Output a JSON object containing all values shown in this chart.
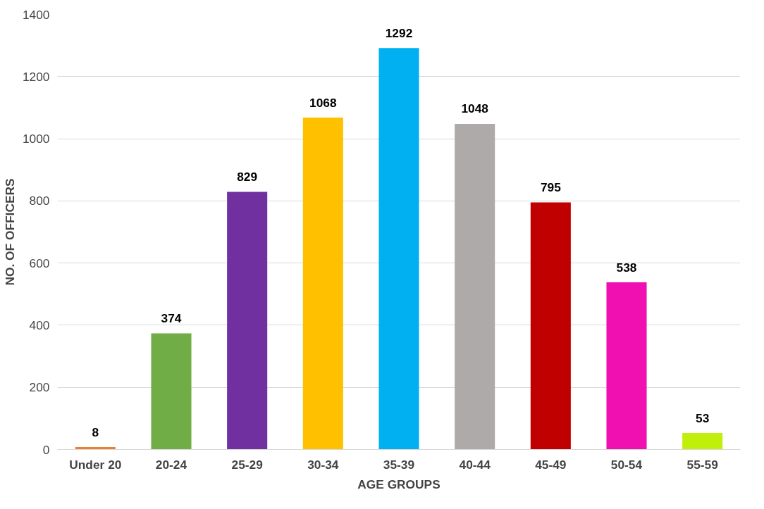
{
  "chart_data": {
    "type": "bar",
    "xlabel": "AGE GROUPS",
    "ylabel": "NO. OF OFFICERS",
    "categories": [
      "Under 20",
      "20-24",
      "25-29",
      "30-34",
      "35-39",
      "40-44",
      "45-49",
      "50-54",
      "55-59"
    ],
    "values": [
      8,
      374,
      829,
      1068,
      1292,
      1048,
      795,
      538,
      53
    ],
    "colors": [
      "#ed7d31",
      "#70ad47",
      "#7030a0",
      "#ffc000",
      "#00b0f0",
      "#aeaaaa",
      "#c00000",
      "#f00fb0",
      "#bfef0a"
    ],
    "ylim": [
      0,
      1400
    ],
    "yticks": [
      0,
      200,
      400,
      600,
      800,
      1000,
      1200,
      1400
    ],
    "grid": "y",
    "data_labels": true
  }
}
